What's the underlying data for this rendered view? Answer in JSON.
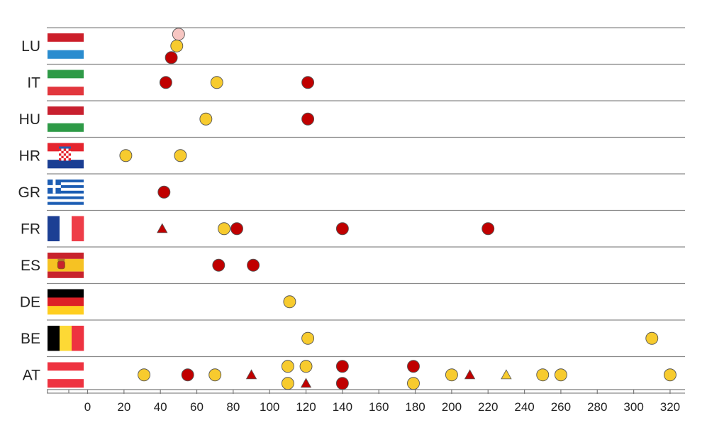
{
  "chart_data": {
    "type": "scatter",
    "title": "",
    "xlabel": "",
    "ylabel": "",
    "xlim": [
      -22,
      324
    ],
    "xticks": [
      0,
      20,
      40,
      60,
      80,
      100,
      120,
      140,
      160,
      180,
      200,
      220,
      240,
      260,
      280,
      300,
      320
    ],
    "grid": "horizontal row separators",
    "rows": [
      {
        "code": "LU",
        "flag": "luxembourg-flag",
        "points": [
          {
            "x": 50,
            "shape": "circle",
            "color": "#f7c6c2"
          },
          {
            "x": 49,
            "shape": "circle",
            "color": "#f7cb2e"
          },
          {
            "x": 46,
            "shape": "circle",
            "color": "#c00000"
          }
        ]
      },
      {
        "code": "IT",
        "flag": "italy-flag",
        "points": [
          {
            "x": 43,
            "shape": "circle",
            "color": "#c00000"
          },
          {
            "x": 71,
            "shape": "circle",
            "color": "#f7cb2e"
          },
          {
            "x": 121,
            "shape": "circle",
            "color": "#c00000"
          }
        ]
      },
      {
        "code": "HU",
        "flag": "hungary-flag",
        "points": [
          {
            "x": 65,
            "shape": "circle",
            "color": "#f7cb2e"
          },
          {
            "x": 121,
            "shape": "circle",
            "color": "#c00000"
          }
        ]
      },
      {
        "code": "HR",
        "flag": "croatia-flag",
        "points": [
          {
            "x": 21,
            "shape": "circle",
            "color": "#f7cb2e"
          },
          {
            "x": 51,
            "shape": "circle",
            "color": "#f7cb2e"
          }
        ]
      },
      {
        "code": "GR",
        "flag": "greece-flag",
        "points": [
          {
            "x": 42,
            "shape": "circle",
            "color": "#c00000"
          }
        ]
      },
      {
        "code": "FR",
        "flag": "france-flag",
        "points": [
          {
            "x": 41,
            "shape": "triangle",
            "color": "#c00000"
          },
          {
            "x": 75,
            "shape": "circle",
            "color": "#f7cb2e"
          },
          {
            "x": 82,
            "shape": "circle",
            "color": "#c00000"
          },
          {
            "x": 140,
            "shape": "circle",
            "color": "#c00000"
          },
          {
            "x": 220,
            "shape": "circle",
            "color": "#c00000"
          }
        ]
      },
      {
        "code": "ES",
        "flag": "spain-flag",
        "points": [
          {
            "x": 72,
            "shape": "circle",
            "color": "#c00000"
          },
          {
            "x": 91,
            "shape": "circle",
            "color": "#c00000"
          }
        ]
      },
      {
        "code": "DE",
        "flag": "germany-flag",
        "points": [
          {
            "x": 111,
            "shape": "circle",
            "color": "#f7cb2e"
          }
        ]
      },
      {
        "code": "BE",
        "flag": "belgium-flag",
        "points": [
          {
            "x": 121,
            "shape": "circle",
            "color": "#f7cb2e"
          },
          {
            "x": 310,
            "shape": "circle",
            "color": "#f7cb2e"
          }
        ]
      },
      {
        "code": "AT",
        "flag": "austria-flag",
        "points": [
          {
            "x": 31,
            "shape": "circle",
            "color": "#f7cb2e"
          },
          {
            "x": 55,
            "shape": "circle",
            "color": "#c00000"
          },
          {
            "x": 70,
            "shape": "circle",
            "color": "#f7cb2e"
          },
          {
            "x": 90,
            "shape": "triangle",
            "color": "#c00000"
          },
          {
            "x": 110,
            "shape": "circle",
            "color": "#f7cb2e"
          },
          {
            "x": 110,
            "shape": "circle",
            "color": "#f7cb2e"
          },
          {
            "x": 120,
            "shape": "circle",
            "color": "#f7cb2e"
          },
          {
            "x": 120,
            "shape": "triangle",
            "color": "#c00000"
          },
          {
            "x": 140,
            "shape": "circle",
            "color": "#c00000"
          },
          {
            "x": 140,
            "shape": "circle",
            "color": "#c00000"
          },
          {
            "x": 179,
            "shape": "circle",
            "color": "#c00000"
          },
          {
            "x": 179,
            "shape": "circle",
            "color": "#f7cb2e"
          },
          {
            "x": 200,
            "shape": "circle",
            "color": "#f7cb2e"
          },
          {
            "x": 210,
            "shape": "triangle",
            "color": "#c00000"
          },
          {
            "x": 230,
            "shape": "triangle",
            "color": "#f7cb2e"
          },
          {
            "x": 250,
            "shape": "circle",
            "color": "#f7cb2e"
          },
          {
            "x": 260,
            "shape": "circle",
            "color": "#f7cb2e"
          },
          {
            "x": 320,
            "shape": "circle",
            "color": "#f7cb2e"
          }
        ]
      }
    ]
  },
  "colors": {
    "dark_red": "#c00000",
    "yellow": "#f7cb2e",
    "pink": "#f7c6c2",
    "row_line": "#8a8a8a",
    "axis_line": "#7a7a7a",
    "marker_stroke": "#555555"
  }
}
